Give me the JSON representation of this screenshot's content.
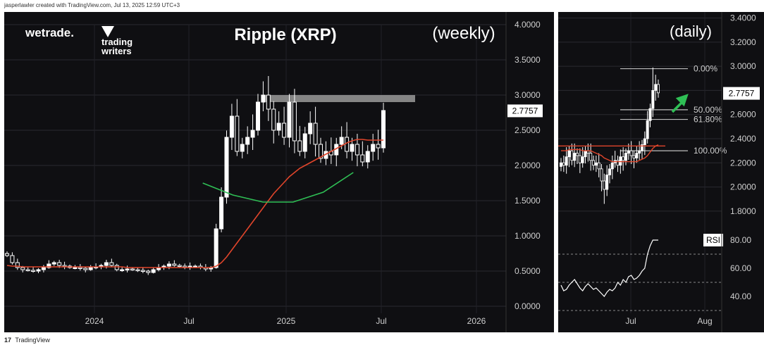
{
  "header": {
    "credit": "jasperlawler created with TradingView.com, Jul 13, 2025 12:59 UTC+3"
  },
  "footer": {
    "brand": "TradingView"
  },
  "logos": {
    "wetrade": "wetrade.",
    "tw_line1": "trading",
    "tw_line2": "writers"
  },
  "colors": {
    "background": "#0f0f12",
    "ma": "#e0452b",
    "curve": "#2fbf55",
    "arrow": "#2fbf55",
    "resistance": "#9a9a9a",
    "candle": "#ffffff"
  },
  "chart_data": [
    {
      "type": "candlestick",
      "title": "Ripple (XRP)",
      "subtitle": "(weekly)",
      "x_ticks": [
        "2024",
        "Jul",
        "2025",
        "Jul",
        "2026"
      ],
      "y_ticks": [
        "4.0000",
        "3.5000",
        "3.0000",
        "2.5000",
        "2.0000",
        "1.5000",
        "1.0000",
        "0.5000",
        "0.0000"
      ],
      "ylim": [
        0,
        4
      ],
      "last_price": "2.7757",
      "resistance_zone": [
        2.9,
        3.0
      ],
      "close_series": [
        0.72,
        0.62,
        0.55,
        0.52,
        0.51,
        0.5,
        0.52,
        0.55,
        0.6,
        0.62,
        0.58,
        0.57,
        0.55,
        0.55,
        0.54,
        0.52,
        0.55,
        0.56,
        0.58,
        0.62,
        0.58,
        0.52,
        0.52,
        0.53,
        0.52,
        0.51,
        0.5,
        0.48,
        0.52,
        0.55,
        0.57,
        0.6,
        0.58,
        0.57,
        0.56,
        0.57,
        0.57,
        0.55,
        0.53,
        0.55,
        1.1,
        1.55,
        2.4,
        2.7,
        2.2,
        2.3,
        2.4,
        2.5,
        2.9,
        3.0,
        2.8,
        2.5,
        2.6,
        2.4,
        2.9,
        2.35,
        2.2,
        2.45,
        2.6,
        2.3,
        2.1,
        2.2,
        2.15,
        2.3,
        2.4,
        2.2,
        2.3,
        2.15,
        2.05,
        2.2,
        2.3,
        2.25,
        2.78
      ],
      "ma_series": [
        0.58,
        0.57,
        0.57,
        0.56,
        0.56,
        0.56,
        0.56,
        0.56,
        0.56,
        0.56,
        0.56,
        0.56,
        0.56,
        0.56,
        0.56,
        0.56,
        0.56,
        0.56,
        0.56,
        0.56,
        0.56,
        0.56,
        0.56,
        0.55,
        0.55,
        0.55,
        0.55,
        0.55,
        0.55,
        0.55,
        0.55,
        0.55,
        0.55,
        0.55,
        0.55,
        0.55,
        0.55,
        0.55,
        0.55,
        0.55,
        0.57,
        0.62,
        0.7,
        0.8,
        0.9,
        1.0,
        1.1,
        1.2,
        1.3,
        1.4,
        1.5,
        1.6,
        1.68,
        1.76,
        1.84,
        1.9,
        1.96,
        2.0,
        2.04,
        2.08,
        2.12,
        2.16,
        2.2,
        2.24,
        2.28,
        2.32,
        2.35,
        2.37,
        2.37,
        2.36,
        2.36,
        2.36,
        2.36
      ],
      "curve_series": [
        [
          0.52,
          1.75
        ],
        [
          0.6,
          1.58
        ],
        [
          0.68,
          1.48
        ],
        [
          0.76,
          1.48
        ],
        [
          0.84,
          1.62
        ],
        [
          0.92,
          1.9
        ]
      ]
    },
    {
      "type": "candlestick",
      "subtitle": "(daily)",
      "x_ticks": [
        "Jul",
        "Aug"
      ],
      "y_ticks": [
        "3.4000",
        "3.2000",
        "3.0000",
        "2.8000",
        "2.6000",
        "2.4000",
        "2.2000",
        "2.0000",
        "1.8000"
      ],
      "ylim": [
        1.7,
        3.45
      ],
      "last_price": "2.7757",
      "fib_levels": [
        {
          "label": "0.00%",
          "value": 2.98
        },
        {
          "label": "50.00%",
          "value": 2.64
        },
        {
          "label": "61.80%",
          "value": 2.56
        },
        {
          "label": "100.00%",
          "value": 2.3
        }
      ],
      "close_series": [
        2.2,
        2.18,
        2.25,
        2.3,
        2.22,
        2.28,
        2.26,
        2.2,
        2.25,
        2.3,
        2.28,
        2.22,
        2.18,
        2.2,
        2.15,
        2.05,
        1.98,
        2.1,
        2.15,
        2.2,
        2.22,
        2.18,
        2.25,
        2.22,
        2.28,
        2.3,
        2.26,
        2.24,
        2.28,
        2.3,
        2.35,
        2.4,
        2.55,
        2.65,
        2.8,
        2.85,
        2.78
      ],
      "ma_series": [
        2.3,
        2.3,
        2.3,
        2.31,
        2.31,
        2.31,
        2.31,
        2.31,
        2.3,
        2.3,
        2.3,
        2.3,
        2.29,
        2.28,
        2.27,
        2.26,
        2.24,
        2.23,
        2.22,
        2.21,
        2.21,
        2.21,
        2.21,
        2.21,
        2.21,
        2.21,
        2.21,
        2.21,
        2.21,
        2.22,
        2.23,
        2.24,
        2.26,
        2.29,
        2.32,
        2.34,
        2.35
      ],
      "breakout_line": 2.34
    },
    {
      "type": "line",
      "legend": "RSI",
      "y_ticks": [
        "80.00",
        "60.00",
        "40.00"
      ],
      "ylim": [
        28,
        92
      ],
      "dashed_levels": [
        70,
        50,
        30
      ],
      "values": [
        48,
        44,
        45,
        48,
        50,
        52,
        49,
        46,
        44,
        47,
        49,
        47,
        45,
        46,
        44,
        42,
        40,
        43,
        45,
        44,
        46,
        50,
        48,
        52,
        50,
        54,
        55,
        52,
        53,
        55,
        58,
        60,
        70,
        76,
        80,
        80,
        80
      ]
    }
  ]
}
